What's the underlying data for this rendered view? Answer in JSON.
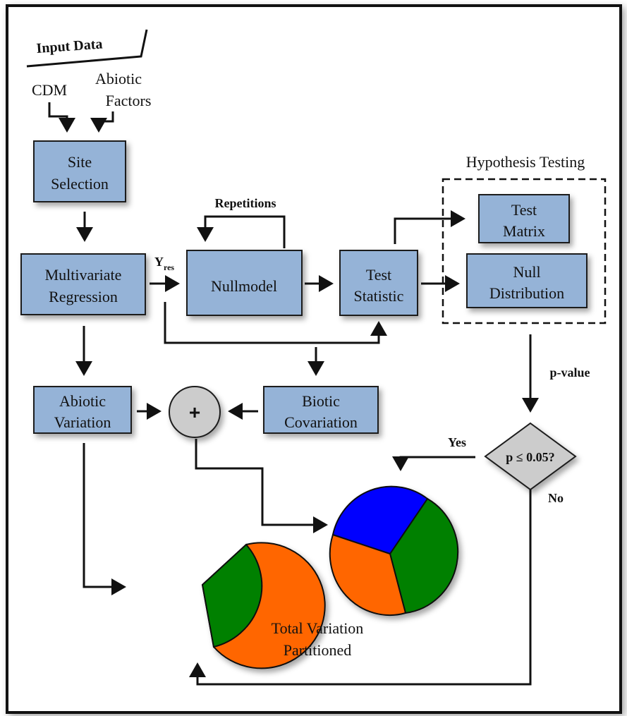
{
  "input_data": {
    "title": "Input Data",
    "cdm": "CDM",
    "abiotic_factors": [
      "Abiotic",
      "Factors"
    ]
  },
  "site_selection": [
    "Site",
    "Selection"
  ],
  "multivariate_regression": [
    "Multivariate",
    "Regression"
  ],
  "y_res": {
    "base": "Y",
    "sub": "res"
  },
  "nullmodel": "Nullmodel",
  "repetitions": "Repetitions",
  "test_statistic": [
    "Test",
    "Statistic"
  ],
  "hypothesis_testing": {
    "title": "Hypothesis Testing",
    "test_matrix": [
      "Test",
      "Matrix"
    ],
    "null_distribution": [
      "Null",
      "Distribution"
    ]
  },
  "p_value": "p-value",
  "decision": {
    "question": "p ≤ 0.05?",
    "yes": "Yes",
    "no": "No"
  },
  "abiotic_variation": [
    "Abiotic",
    "Variation"
  ],
  "biotic_covariation": [
    "Biotic",
    "Covariation"
  ],
  "plus_symbol": "+",
  "total_variation": [
    "Total Variation",
    "Partitioned"
  ],
  "colors": {
    "box_fill": "#95b3d7",
    "orange": "#ff6600",
    "green": "#008000",
    "blue": "#0000ff",
    "node_grey": "#cccccc"
  }
}
